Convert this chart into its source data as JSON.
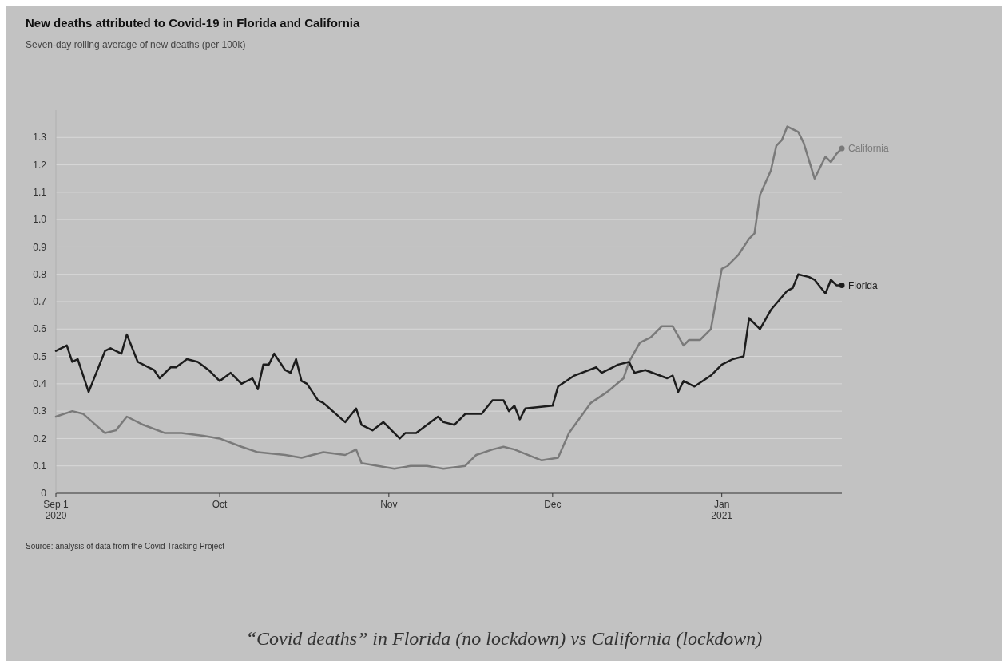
{
  "chart_data": {
    "type": "line",
    "title": "New deaths attributed to Covid-19 in Florida and California",
    "subtitle": "Seven-day rolling average of new deaths (per 100k)",
    "xlim": [
      "2020-09-01",
      "2021-01-23"
    ],
    "xticks": [
      {
        "value": "2020-09-01",
        "label": "Sep 1\n2020"
      },
      {
        "value": "2020-10-01",
        "label": "Oct"
      },
      {
        "value": "2020-11-01",
        "label": "Nov"
      },
      {
        "value": "2020-12-01",
        "label": "Dec"
      },
      {
        "value": "2021-01-01",
        "label": "Jan\n2021"
      }
    ],
    "ylim": [
      0,
      1.4
    ],
    "yticks": [
      0,
      0.1,
      0.2,
      0.3,
      0.4,
      0.5,
      0.6,
      0.7,
      0.8,
      0.9,
      {
        "value": 1,
        "label": "1.0"
      },
      1.1,
      1.2,
      1.3
    ],
    "grid": "y",
    "series": [
      {
        "name": "California",
        "color": "#7a7a7a",
        "x": [
          "2020-09-01",
          "2020-09-04",
          "2020-09-06",
          "2020-09-10",
          "2020-09-12",
          "2020-09-14",
          "2020-09-17",
          "2020-09-21",
          "2020-09-24",
          "2020-09-28",
          "2020-10-01",
          "2020-10-05",
          "2020-10-08",
          "2020-10-13",
          "2020-10-16",
          "2020-10-20",
          "2020-10-24",
          "2020-10-26",
          "2020-10-27",
          "2020-10-30",
          "2020-11-02",
          "2020-11-05",
          "2020-11-08",
          "2020-11-11",
          "2020-11-15",
          "2020-11-17",
          "2020-11-20",
          "2020-11-22",
          "2020-11-24",
          "2020-11-29",
          "2020-12-02",
          "2020-12-04",
          "2020-12-08",
          "2020-12-11",
          "2020-12-14",
          "2020-12-15",
          "2020-12-17",
          "2020-12-19",
          "2020-12-21",
          "2020-12-23",
          "2020-12-25",
          "2020-12-26",
          "2020-12-28",
          "2020-12-30",
          "2021-01-01",
          "2021-01-02",
          "2021-01-04",
          "2021-01-06",
          "2021-01-07",
          "2021-01-08",
          "2021-01-10",
          "2021-01-11",
          "2021-01-12",
          "2021-01-13",
          "2021-01-15",
          "2021-01-16",
          "2021-01-18",
          "2021-01-19",
          "2021-01-20",
          "2021-01-21",
          "2021-01-22",
          "2021-01-23"
        ],
        "values": [
          0.28,
          0.3,
          0.29,
          0.22,
          0.23,
          0.28,
          0.25,
          0.22,
          0.22,
          0.21,
          0.2,
          0.17,
          0.15,
          0.14,
          0.13,
          0.15,
          0.14,
          0.16,
          0.11,
          0.1,
          0.09,
          0.1,
          0.1,
          0.09,
          0.1,
          0.14,
          0.16,
          0.17,
          0.16,
          0.12,
          0.13,
          0.22,
          0.33,
          0.37,
          0.42,
          0.48,
          0.55,
          0.57,
          0.61,
          0.61,
          0.54,
          0.56,
          0.56,
          0.6,
          0.82,
          0.83,
          0.87,
          0.93,
          0.95,
          1.09,
          1.18,
          1.27,
          1.29,
          1.34,
          1.32,
          1.28,
          1.15,
          1.19,
          1.23,
          1.21,
          1.24,
          1.26
        ]
      },
      {
        "name": "Florida",
        "color": "#1c1c1c",
        "x": [
          "2020-09-01",
          "2020-09-03",
          "2020-09-04",
          "2020-09-05",
          "2020-09-07",
          "2020-09-10",
          "2020-09-11",
          "2020-09-13",
          "2020-09-14",
          "2020-09-16",
          "2020-09-18",
          "2020-09-19",
          "2020-09-20",
          "2020-09-22",
          "2020-09-23",
          "2020-09-25",
          "2020-09-27",
          "2020-09-29",
          "2020-10-01",
          "2020-10-03",
          "2020-10-05",
          "2020-10-07",
          "2020-10-08",
          "2020-10-09",
          "2020-10-10",
          "2020-10-11",
          "2020-10-13",
          "2020-10-14",
          "2020-10-15",
          "2020-10-16",
          "2020-10-17",
          "2020-10-19",
          "2020-10-20",
          "2020-10-24",
          "2020-10-26",
          "2020-10-27",
          "2020-10-29",
          "2020-10-31",
          "2020-11-03",
          "2020-11-04",
          "2020-11-06",
          "2020-11-10",
          "2020-11-11",
          "2020-11-13",
          "2020-11-15",
          "2020-11-18",
          "2020-11-20",
          "2020-11-22",
          "2020-11-23",
          "2020-11-24",
          "2020-11-25",
          "2020-11-26",
          "2020-12-01",
          "2020-12-02",
          "2020-12-05",
          "2020-12-09",
          "2020-12-10",
          "2020-12-13",
          "2020-12-15",
          "2020-12-16",
          "2020-12-18",
          "2020-12-22",
          "2020-12-23",
          "2020-12-24",
          "2020-12-25",
          "2020-12-27",
          "2020-12-30",
          "2021-01-01",
          "2021-01-03",
          "2021-01-05",
          "2021-01-06",
          "2021-01-08",
          "2021-01-10",
          "2021-01-13",
          "2021-01-14",
          "2021-01-15",
          "2021-01-17",
          "2021-01-18",
          "2021-01-20",
          "2021-01-21",
          "2021-01-22",
          "2021-01-23"
        ],
        "values": [
          0.52,
          0.54,
          0.48,
          0.49,
          0.37,
          0.52,
          0.53,
          0.51,
          0.58,
          0.48,
          0.46,
          0.45,
          0.42,
          0.46,
          0.46,
          0.49,
          0.48,
          0.45,
          0.41,
          0.44,
          0.4,
          0.42,
          0.38,
          0.47,
          0.47,
          0.51,
          0.45,
          0.44,
          0.49,
          0.41,
          0.4,
          0.34,
          0.33,
          0.26,
          0.31,
          0.25,
          0.23,
          0.26,
          0.2,
          0.22,
          0.22,
          0.28,
          0.26,
          0.25,
          0.29,
          0.29,
          0.34,
          0.34,
          0.3,
          0.32,
          0.27,
          0.31,
          0.32,
          0.39,
          0.43,
          0.46,
          0.44,
          0.47,
          0.48,
          0.44,
          0.45,
          0.42,
          0.43,
          0.37,
          0.41,
          0.39,
          0.43,
          0.47,
          0.49,
          0.5,
          0.64,
          0.6,
          0.67,
          0.74,
          0.75,
          0.8,
          0.79,
          0.78,
          0.73,
          0.78,
          0.76,
          0.76
        ]
      }
    ],
    "annotations": [
      "Source: analysis of data from the Covid Tracking Project",
      "“Covid deaths” in Florida (no lockdown) vs California (lockdown)"
    ]
  }
}
